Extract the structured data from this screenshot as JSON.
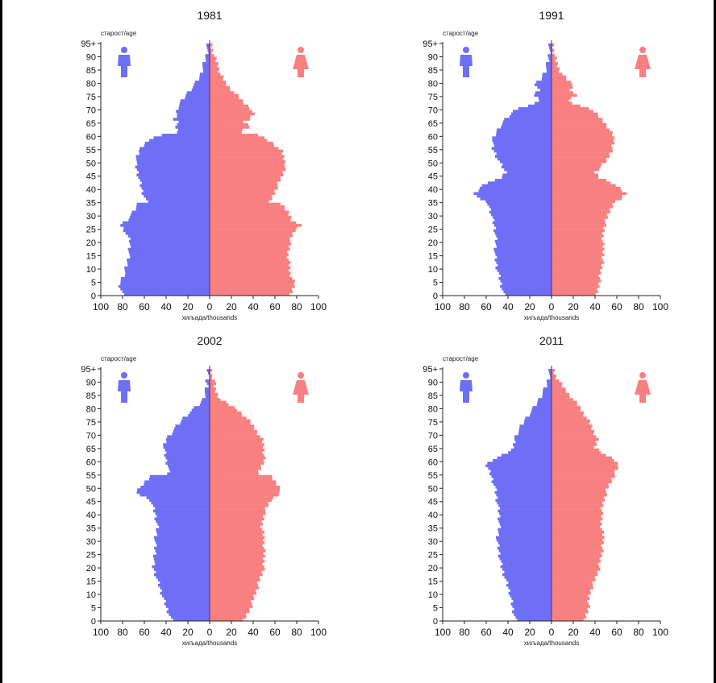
{
  "figure": {
    "colors": {
      "male": "#6e6ef6",
      "female": "#f98080",
      "axis": "#222222",
      "center": "#55305a"
    },
    "icons": {
      "male": "male-person-icon",
      "female": "female-person-icon"
    }
  },
  "chart_data": [
    {
      "type": "bar",
      "orientation": "horizontal-pyramid",
      "title": "1981",
      "ylabel": "старост/age",
      "xlabel": "хиљада/thousands",
      "xticks": [
        "100",
        "80",
        "60",
        "40",
        "20",
        "0",
        "20",
        "40",
        "60",
        "80",
        "100"
      ],
      "yticks": [
        "0",
        "5",
        "10",
        "15",
        "20",
        "25",
        "30",
        "35",
        "40",
        "45",
        "50",
        "55",
        "60",
        "65",
        "70",
        "75",
        "80",
        "85",
        "90",
        "95+"
      ],
      "xlim": [
        0,
        100
      ],
      "ylim": [
        0,
        95
      ],
      "series": [
        {
          "side": "male",
          "anchors": [
            [
              0,
              80
            ],
            [
              4,
              83
            ],
            [
              8,
              78
            ],
            [
              15,
              74
            ],
            [
              20,
              73
            ],
            [
              24,
              78
            ],
            [
              26,
              82
            ],
            [
              28,
              76
            ],
            [
              31,
              70
            ],
            [
              34,
              66
            ],
            [
              35,
              58
            ],
            [
              39,
              62
            ],
            [
              44,
              65
            ],
            [
              49,
              68
            ],
            [
              54,
              65
            ],
            [
              57,
              60
            ],
            [
              60,
              45
            ],
            [
              61,
              30
            ],
            [
              62,
              28
            ],
            [
              63,
              33
            ],
            [
              65,
              28
            ],
            [
              66,
              32
            ],
            [
              68,
              30
            ],
            [
              70,
              30
            ],
            [
              72,
              27
            ],
            [
              75,
              22
            ],
            [
              78,
              16
            ],
            [
              80,
              12
            ],
            [
              83,
              8
            ],
            [
              86,
              6
            ],
            [
              90,
              3
            ],
            [
              93,
              2
            ],
            [
              95,
              1
            ]
          ]
        },
        {
          "side": "female",
          "anchors": [
            [
              0,
              75
            ],
            [
              4,
              78
            ],
            [
              8,
              74
            ],
            [
              15,
              72
            ],
            [
              20,
              74
            ],
            [
              24,
              78
            ],
            [
              26,
              83
            ],
            [
              28,
              76
            ],
            [
              31,
              72
            ],
            [
              34,
              65
            ],
            [
              35,
              56
            ],
            [
              39,
              60
            ],
            [
              44,
              66
            ],
            [
              49,
              70
            ],
            [
              54,
              66
            ],
            [
              57,
              58
            ],
            [
              60,
              45
            ],
            [
              61,
              28
            ],
            [
              62,
              30
            ],
            [
              63,
              38
            ],
            [
              65,
              32
            ],
            [
              66,
              36
            ],
            [
              68,
              40
            ],
            [
              70,
              38
            ],
            [
              72,
              32
            ],
            [
              75,
              25
            ],
            [
              78,
              18
            ],
            [
              80,
              14
            ],
            [
              83,
              10
            ],
            [
              86,
              8
            ],
            [
              90,
              4
            ],
            [
              93,
              2
            ],
            [
              95,
              1
            ]
          ]
        }
      ]
    },
    {
      "type": "bar",
      "orientation": "horizontal-pyramid",
      "title": "1991",
      "ylabel": "старост/age",
      "xlabel": "хиљада/thousands",
      "xticks": [
        "100",
        "80",
        "60",
        "40",
        "20",
        "0",
        "20",
        "40",
        "60",
        "80",
        "100"
      ],
      "yticks": [
        "0",
        "5",
        "10",
        "15",
        "20",
        "25",
        "30",
        "35",
        "40",
        "45",
        "50",
        "55",
        "60",
        "65",
        "70",
        "75",
        "80",
        "85",
        "90",
        "95+"
      ],
      "xlim": [
        0,
        100
      ],
      "ylim": [
        0,
        95
      ],
      "series": [
        {
          "side": "male",
          "anchors": [
            [
              0,
              44
            ],
            [
              5,
              47
            ],
            [
              10,
              50
            ],
            [
              15,
              52
            ],
            [
              20,
              51
            ],
            [
              25,
              52
            ],
            [
              30,
              55
            ],
            [
              34,
              58
            ],
            [
              36,
              66
            ],
            [
              38,
              70
            ],
            [
              40,
              66
            ],
            [
              42,
              60
            ],
            [
              44,
              45
            ],
            [
              46,
              42
            ],
            [
              50,
              48
            ],
            [
              55,
              54
            ],
            [
              58,
              54
            ],
            [
              60,
              52
            ],
            [
              63,
              48
            ],
            [
              66,
              42
            ],
            [
              70,
              32
            ],
            [
              71,
              22
            ],
            [
              72,
              15
            ],
            [
              73,
              10
            ],
            [
              75,
              16
            ],
            [
              77,
              12
            ],
            [
              79,
              15
            ],
            [
              81,
              10
            ],
            [
              84,
              6
            ],
            [
              88,
              3
            ],
            [
              92,
              2
            ],
            [
              95,
              1
            ]
          ]
        },
        {
          "side": "female",
          "anchors": [
            [
              0,
              42
            ],
            [
              5,
              44
            ],
            [
              10,
              46
            ],
            [
              15,
              48
            ],
            [
              20,
              47
            ],
            [
              25,
              48
            ],
            [
              30,
              52
            ],
            [
              34,
              56
            ],
            [
              36,
              64
            ],
            [
              38,
              68
            ],
            [
              40,
              62
            ],
            [
              42,
              56
            ],
            [
              44,
              44
            ],
            [
              46,
              40
            ],
            [
              50,
              50
            ],
            [
              55,
              56
            ],
            [
              58,
              58
            ],
            [
              60,
              56
            ],
            [
              63,
              52
            ],
            [
              66,
              46
            ],
            [
              70,
              36
            ],
            [
              71,
              26
            ],
            [
              72,
              20
            ],
            [
              73,
              15
            ],
            [
              75,
              22
            ],
            [
              77,
              18
            ],
            [
              79,
              20
            ],
            [
              81,
              14
            ],
            [
              84,
              8
            ],
            [
              88,
              4
            ],
            [
              92,
              2
            ],
            [
              95,
              1
            ]
          ]
        }
      ]
    },
    {
      "type": "bar",
      "orientation": "horizontal-pyramid",
      "title": "2002",
      "ylabel": "старост/age",
      "xlabel": "хиљада/thousands",
      "xticks": [
        "100",
        "80",
        "60",
        "40",
        "20",
        "0",
        "20",
        "40",
        "60",
        "80",
        "100"
      ],
      "yticks": [
        "0",
        "5",
        "10",
        "15",
        "20",
        "25",
        "30",
        "35",
        "40",
        "45",
        "50",
        "55",
        "60",
        "65",
        "70",
        "75",
        "80",
        "85",
        "90",
        "95+"
      ],
      "xlim": [
        0,
        100
      ],
      "ylim": [
        0,
        95
      ],
      "series": [
        {
          "side": "male",
          "anchors": [
            [
              0,
              35
            ],
            [
              5,
              40
            ],
            [
              10,
              44
            ],
            [
              15,
              48
            ],
            [
              20,
              52
            ],
            [
              25,
              50
            ],
            [
              30,
              50
            ],
            [
              35,
              48
            ],
            [
              40,
              50
            ],
            [
              45,
              54
            ],
            [
              47,
              64
            ],
            [
              49,
              68
            ],
            [
              51,
              60
            ],
            [
              54,
              55
            ],
            [
              55,
              38
            ],
            [
              58,
              38
            ],
            [
              60,
              40
            ],
            [
              65,
              42
            ],
            [
              68,
              40
            ],
            [
              70,
              36
            ],
            [
              73,
              30
            ],
            [
              76,
              24
            ],
            [
              79,
              16
            ],
            [
              81,
              10
            ],
            [
              83,
              6
            ],
            [
              86,
              4
            ],
            [
              88,
              2
            ],
            [
              90,
              3
            ],
            [
              92,
              1
            ],
            [
              95,
              1
            ]
          ]
        },
        {
          "side": "female",
          "anchors": [
            [
              0,
              32
            ],
            [
              5,
              38
            ],
            [
              10,
              42
            ],
            [
              15,
              46
            ],
            [
              20,
              50
            ],
            [
              25,
              50
            ],
            [
              30,
              50
            ],
            [
              35,
              48
            ],
            [
              40,
              50
            ],
            [
              45,
              56
            ],
            [
              47,
              62
            ],
            [
              49,
              66
            ],
            [
              51,
              62
            ],
            [
              54,
              56
            ],
            [
              55,
              45
            ],
            [
              58,
              48
            ],
            [
              60,
              50
            ],
            [
              65,
              50
            ],
            [
              68,
              48
            ],
            [
              70,
              45
            ],
            [
              73,
              40
            ],
            [
              76,
              34
            ],
            [
              79,
              26
            ],
            [
              81,
              18
            ],
            [
              83,
              10
            ],
            [
              86,
              6
            ],
            [
              88,
              4
            ],
            [
              90,
              5
            ],
            [
              92,
              2
            ],
            [
              95,
              1
            ]
          ]
        }
      ]
    },
    {
      "type": "bar",
      "orientation": "horizontal-pyramid",
      "title": "2011",
      "ylabel": "старост/age",
      "xlabel": "хиљада/thousands",
      "xticks": [
        "100",
        "80",
        "60",
        "40",
        "20",
        "0",
        "20",
        "40",
        "60",
        "80",
        "100"
      ],
      "yticks": [
        "0",
        "5",
        "10",
        "15",
        "20",
        "25",
        "30",
        "35",
        "40",
        "45",
        "50",
        "55",
        "60",
        "65",
        "70",
        "75",
        "80",
        "85",
        "90",
        "95+"
      ],
      "xlim": [
        0,
        100
      ],
      "ylim": [
        0,
        95
      ],
      "series": [
        {
          "side": "male",
          "anchors": [
            [
              0,
              33
            ],
            [
              5,
              36
            ],
            [
              10,
              38
            ],
            [
              15,
              42
            ],
            [
              20,
              46
            ],
            [
              25,
              48
            ],
            [
              30,
              50
            ],
            [
              35,
              48
            ],
            [
              40,
              48
            ],
            [
              45,
              50
            ],
            [
              50,
              52
            ],
            [
              55,
              56
            ],
            [
              58,
              60
            ],
            [
              60,
              55
            ],
            [
              62,
              45
            ],
            [
              65,
              34
            ],
            [
              68,
              34
            ],
            [
              70,
              32
            ],
            [
              75,
              25
            ],
            [
              80,
              16
            ],
            [
              84,
              10
            ],
            [
              88,
              5
            ],
            [
              92,
              2
            ],
            [
              95,
              1
            ]
          ]
        },
        {
          "side": "female",
          "anchors": [
            [
              0,
              31
            ],
            [
              5,
              34
            ],
            [
              10,
              35
            ],
            [
              15,
              40
            ],
            [
              20,
              44
            ],
            [
              25,
              46
            ],
            [
              30,
              48
            ],
            [
              35,
              46
            ],
            [
              40,
              46
            ],
            [
              45,
              48
            ],
            [
              50,
              52
            ],
            [
              55,
              58
            ],
            [
              58,
              62
            ],
            [
              60,
              58
            ],
            [
              62,
              50
            ],
            [
              65,
              40
            ],
            [
              68,
              42
            ],
            [
              70,
              40
            ],
            [
              75,
              34
            ],
            [
              80,
              26
            ],
            [
              84,
              18
            ],
            [
              88,
              10
            ],
            [
              92,
              4
            ],
            [
              95,
              1
            ]
          ]
        }
      ]
    }
  ]
}
